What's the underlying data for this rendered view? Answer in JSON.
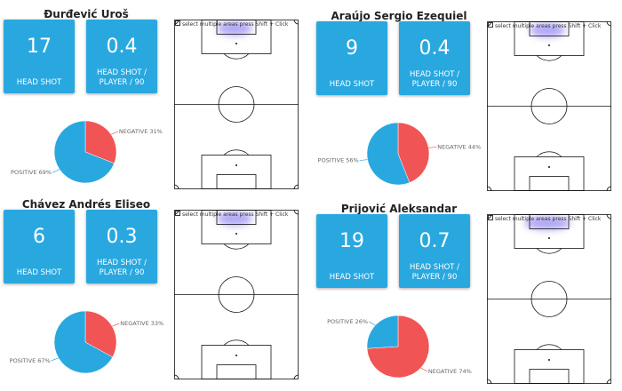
{
  "pitch_hint": "select multiple areas press Shift + Click",
  "kpi_labels": {
    "head_shot": "HEAD SHOT",
    "per90_line1": "HEAD SHOT /",
    "per90_line2": "PLAYER / 90"
  },
  "colors": {
    "positive": "#29a8e0",
    "negative": "#f05454",
    "tile": "#29a8e0"
  },
  "players": [
    {
      "name": "Đurđević Uroš",
      "head_shot": "17",
      "per90": "0.4",
      "positive_pct": 69,
      "negative_pct": 31,
      "positive_label": "POSITIVE 69%",
      "negative_label": "NEGATIVE 31%"
    },
    {
      "name": "Araújo Sergio Ezequiel",
      "head_shot": "9",
      "per90": "0.4",
      "positive_pct": 56,
      "negative_pct": 44,
      "positive_label": "POSITIVE 56%",
      "negative_label": "NEGATIVE 44%"
    },
    {
      "name": "Chávez Andrés Eliseo",
      "head_shot": "6",
      "per90": "0.3",
      "positive_pct": 67,
      "negative_pct": 33,
      "positive_label": "POSITIVE 67%",
      "negative_label": "NEGATIVE 33%"
    },
    {
      "name": "Prijović Aleksandar",
      "head_shot": "19",
      "per90": "0.7",
      "positive_pct": 26,
      "negative_pct": 74,
      "positive_label": "POSITIVE 26%",
      "negative_label": "NEGATIVE 74%"
    }
  ]
}
